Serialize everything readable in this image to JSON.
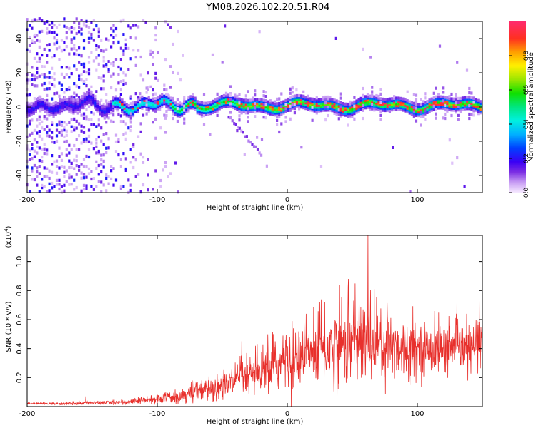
{
  "title": "YM08.2026.102.20.51.R04",
  "chart_data": [
    {
      "type": "heatmap",
      "xlabel": "Height of straight line (km)",
      "ylabel": "Frequency (Hz)",
      "xlim": [
        -200,
        150
      ],
      "ylim": [
        -50,
        50
      ],
      "xticks": [
        -200,
        -100,
        0,
        100
      ],
      "yticks": [
        -40,
        -20,
        0,
        20,
        40
      ],
      "colorbar": {
        "label": "Normalized spectral amplitude",
        "range": [
          0.0,
          1.0
        ],
        "ticks": [
          "0.0",
          "0.2",
          "0.4",
          "0.6",
          "0.8"
        ],
        "tick_values": [
          0.0,
          0.2,
          0.4,
          0.6,
          0.8
        ]
      },
      "features": {
        "main_ridge_frequency_hz": 1,
        "ridge_start_km": -135,
        "noise_scatter_region_km": [
          -200,
          -80
        ],
        "side_branch": {
          "from_km": -45,
          "to_km": -20,
          "from_hz": -5,
          "to_hz": -28
        }
      }
    },
    {
      "type": "line",
      "xlabel": "Height of straight line (km)",
      "ylabel": "SNR (10 * v/v)",
      "yscale_label": "(x10",
      "yscale_exponent": "4",
      "yscale_suffix": ")",
      "xlim": [
        -200,
        150
      ],
      "ylim": [
        0,
        1.18
      ],
      "xticks": [
        -200,
        -100,
        0,
        100
      ],
      "yticks": [
        0.2,
        0.4,
        0.6,
        0.8,
        1.0
      ],
      "ytick_labels": [
        "0.2",
        "0.4",
        "0.6",
        "0.8",
        "1.0"
      ],
      "series": [
        {
          "name": "SNR",
          "color": "#e8302c",
          "envelope": {
            "x": [
              -200,
              -175,
              -150,
              -125,
              -100,
              -80,
              -60,
              -40,
              -20,
              0,
              20,
              40,
              60,
              80,
              100,
              120,
              150
            ],
            "mean": [
              0.02,
              0.02,
              0.025,
              0.03,
              0.05,
              0.08,
              0.12,
              0.17,
              0.23,
              0.32,
              0.38,
              0.42,
              0.45,
              0.42,
              0.4,
              0.4,
              0.4
            ],
            "amplitude": [
              0.005,
              0.008,
              0.01,
              0.015,
              0.03,
              0.05,
              0.08,
              0.1,
              0.13,
              0.18,
              0.22,
              0.25,
              0.26,
              0.22,
              0.16,
              0.15,
              0.15
            ]
          },
          "spikes": [
            {
              "x": -155,
              "y": 0.07
            },
            {
              "x": -35,
              "y": 0.45
            },
            {
              "x": 25,
              "y": 0.72
            },
            {
              "x": 47,
              "y": 0.88
            },
            {
              "x": 62,
              "y": 1.18
            },
            {
              "x": 148,
              "y": 0.73
            }
          ]
        }
      ]
    }
  ]
}
